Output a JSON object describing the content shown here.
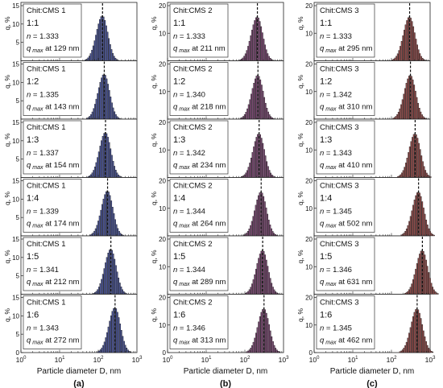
{
  "figure": {
    "x_axis_label": "Particle diameter D, nm",
    "y_axis_label": "q, %",
    "x_tick_labels": [
      "10",
      "10",
      "10",
      "10"
    ],
    "x_tick_exponents": [
      "0",
      "1",
      "2",
      "3"
    ],
    "col_a_y_ticks": [
      "0",
      "5",
      "10",
      "15"
    ],
    "col_bc_y_ticks": [
      "0",
      "10",
      "20"
    ],
    "n_prefix": "n = ",
    "qmax_prefix": "q",
    "qmax_sub": "max",
    "qmax_suffix": " at ",
    "unit_nm": " nm"
  },
  "chart_data": [
    {
      "column": "(a)",
      "label": "Chit:CMS 1",
      "type": "bar",
      "x_scale": "log",
      "xlim": [
        1,
        1000
      ],
      "ylim": [
        0,
        15
      ],
      "bar_color": "#3f4fb3",
      "panels": [
        {
          "ratio": "1:1",
          "n": "1.333",
          "qmax_nm": 129
        },
        {
          "ratio": "1:2",
          "n": "1.335",
          "qmax_nm": 143
        },
        {
          "ratio": "1:3",
          "n": "1.337",
          "qmax_nm": 154
        },
        {
          "ratio": "1:4",
          "n": "1.339",
          "qmax_nm": 174
        },
        {
          "ratio": "1:5",
          "n": "1.341",
          "qmax_nm": 212
        },
        {
          "ratio": "1:6",
          "n": "1.343",
          "qmax_nm": 272
        }
      ]
    },
    {
      "column": "(b)",
      "label": "Chit:CMS 2",
      "type": "bar",
      "x_scale": "log",
      "xlim": [
        1,
        1000
      ],
      "ylim": [
        0,
        20
      ],
      "bar_color": "#8a3f7e",
      "panels": [
        {
          "ratio": "1:1",
          "n": "1.333",
          "qmax_nm": 211
        },
        {
          "ratio": "1:2",
          "n": "1.340",
          "qmax_nm": 218
        },
        {
          "ratio": "1:3",
          "n": "1.342",
          "qmax_nm": 234
        },
        {
          "ratio": "1:4",
          "n": "1.344",
          "qmax_nm": 264
        },
        {
          "ratio": "1:5",
          "n": "1.344",
          "qmax_nm": 289
        },
        {
          "ratio": "1:6",
          "n": "1.346",
          "qmax_nm": 313
        }
      ]
    },
    {
      "column": "(c)",
      "label": "Chit:CMS 3",
      "type": "bar",
      "x_scale": "log",
      "xlim": [
        1,
        1000
      ],
      "ylim": [
        0,
        20
      ],
      "bar_color": "#a8403e",
      "panels": [
        {
          "ratio": "1:1",
          "n": "1.333",
          "qmax_nm": 295
        },
        {
          "ratio": "1:2",
          "n": "1.342",
          "qmax_nm": 310
        },
        {
          "ratio": "1:3",
          "n": "1.343",
          "qmax_nm": 410
        },
        {
          "ratio": "1:4",
          "n": "1.345",
          "qmax_nm": 502
        },
        {
          "ratio": "1:5",
          "n": "1.346",
          "qmax_nm": 631
        },
        {
          "ratio": "1:6",
          "n": "1.345",
          "qmax_nm": 462
        }
      ]
    }
  ]
}
